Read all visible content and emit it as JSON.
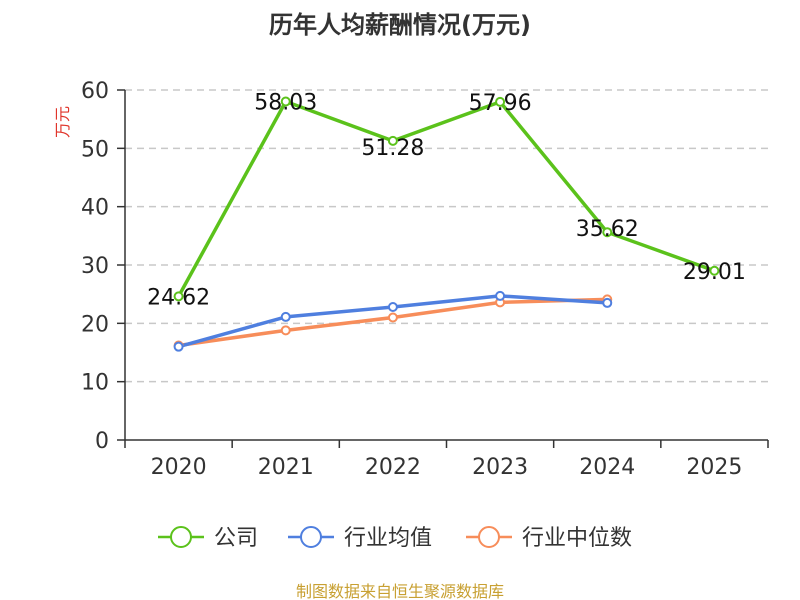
{
  "chart_data": {
    "type": "line",
    "title": "历年人均薪酬情况(万元)",
    "ylabel": "万元",
    "xlabel": "",
    "categories": [
      "2020",
      "2021",
      "2022",
      "2023",
      "2024",
      "2025"
    ],
    "ylim": [
      0,
      60
    ],
    "yticks": [
      "0",
      "10",
      "20",
      "30",
      "40",
      "50",
      "60"
    ],
    "grid": true,
    "legend_position": "bottom",
    "series": [
      {
        "name": "公司",
        "color": "#5bc21b",
        "values": [
          24.62,
          58.03,
          51.28,
          57.96,
          35.62,
          29.01
        ],
        "labels": [
          "24.62",
          "58.03",
          "51.28",
          "57.96",
          "35.62",
          "29.01"
        ]
      },
      {
        "name": "行业均值",
        "color": "#4f7fdf",
        "values": [
          16.0,
          21.1,
          22.8,
          24.7,
          23.5,
          null
        ]
      },
      {
        "name": "行业中位数",
        "color": "#f78d5a",
        "values": [
          16.2,
          18.8,
          21.0,
          23.6,
          24.1,
          null
        ]
      }
    ]
  },
  "source": {
    "text": "制图数据来自恒生聚源数据库",
    "color": "#c8a032"
  },
  "ylabel_color": "#e0352b"
}
